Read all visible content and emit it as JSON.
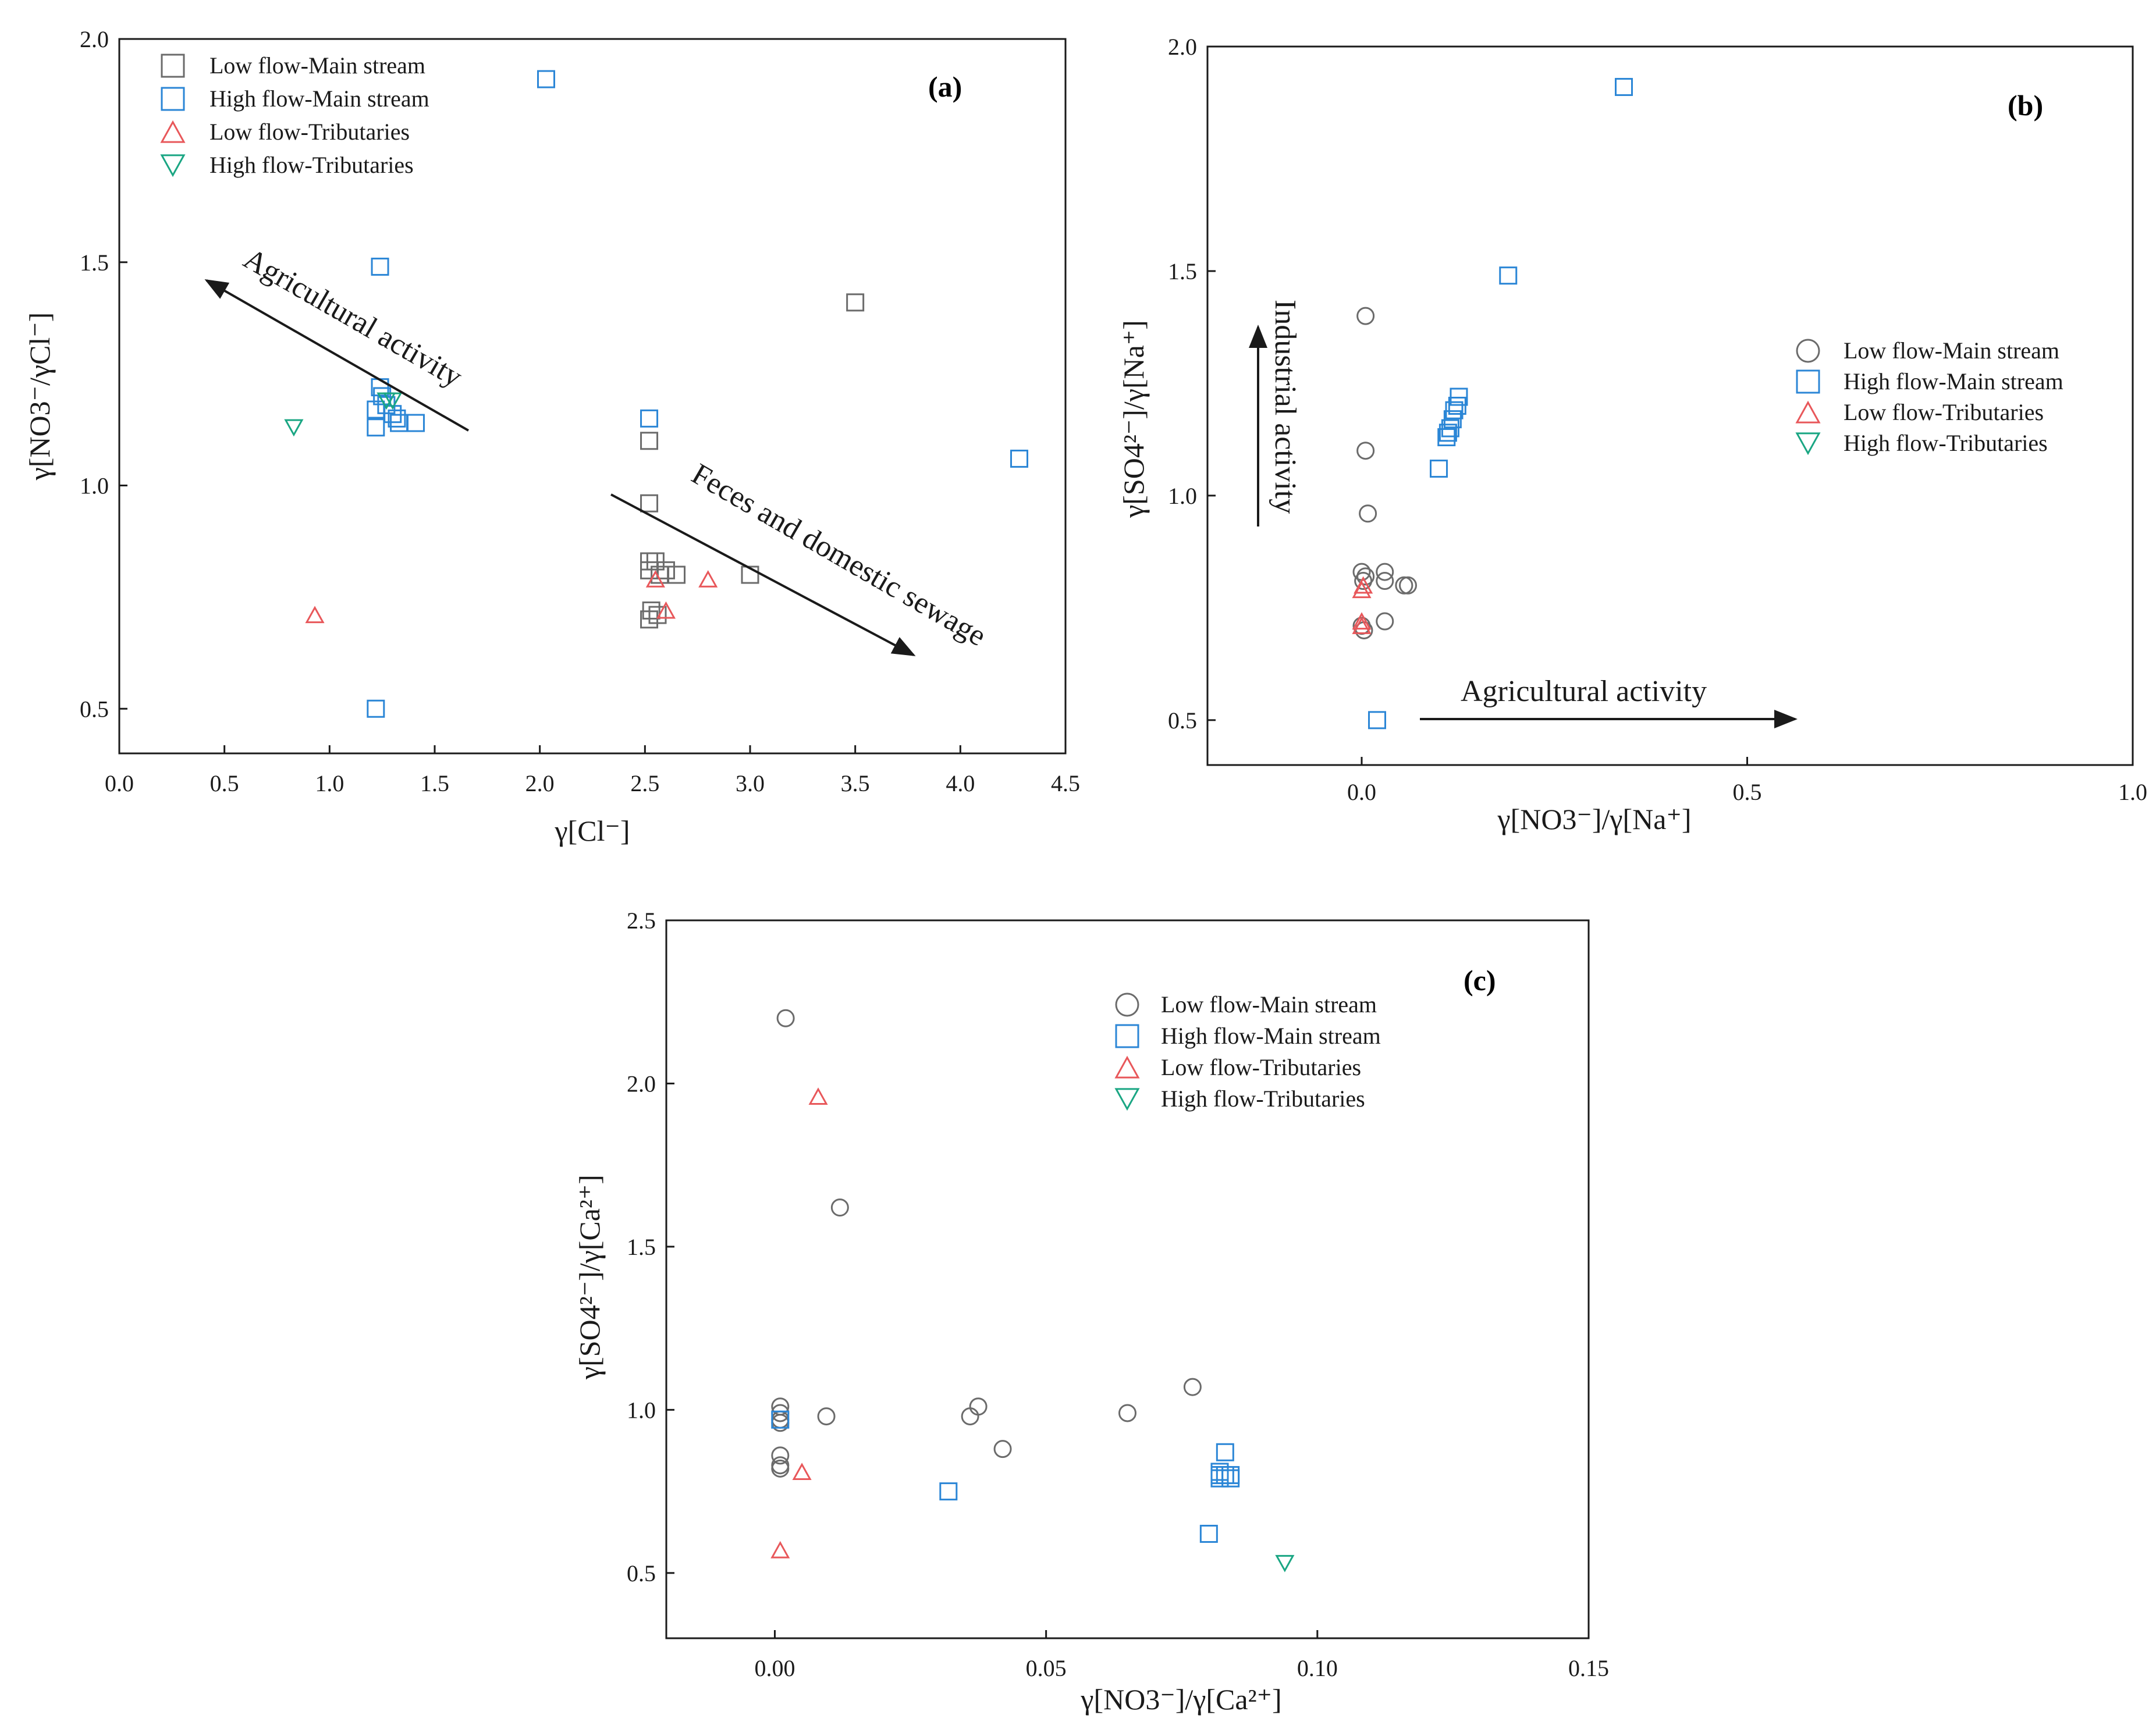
{
  "legend": [
    "Low flow-Main stream",
    "High flow-Main stream",
    "Low flow-Tributaries",
    "High flow-Tributaries"
  ],
  "colors": {
    "low_main": "#6b6b6b",
    "high_main": "#2b86d6",
    "low_trib": "#e8575a",
    "high_trib": "#1aa683",
    "axis": "#1a1a1a"
  },
  "chart_data": [
    {
      "type": "scatter",
      "panel": "(a)",
      "xlabel": "γ[Cl⁻]",
      "ylabel": "γ[NO3⁻/γCl⁻]",
      "xlim": [
        0,
        4.5
      ],
      "ylim": [
        0.4,
        2.0
      ],
      "xticks": [
        "0.0",
        "0.5",
        "1.0",
        "1.5",
        "2.0",
        "2.5",
        "3.0",
        "3.5",
        "4.0",
        "4.5"
      ],
      "yticks": [
        "0.5",
        "1.0",
        "1.5",
        "2.0"
      ],
      "annotations": [
        {
          "text": "Agricultural activity"
        },
        {
          "text": "Feces and domestic sewage"
        }
      ],
      "series": [
        {
          "name": "Low flow-Main stream",
          "marker": "square",
          "points": [
            [
              2.52,
              1.1
            ],
            [
              2.52,
              0.96
            ],
            [
              2.52,
              0.83
            ],
            [
              2.52,
              0.81
            ],
            [
              2.55,
              0.83
            ],
            [
              2.57,
              0.8
            ],
            [
              2.6,
              0.81
            ],
            [
              2.65,
              0.8
            ],
            [
              2.53,
              0.72
            ],
            [
              2.52,
              0.7
            ],
            [
              2.56,
              0.71
            ],
            [
              3.0,
              0.8
            ],
            [
              3.5,
              1.41
            ]
          ]
        },
        {
          "name": "High flow-Main stream",
          "marker": "square",
          "points": [
            [
              1.24,
              1.49
            ],
            [
              1.24,
              1.22
            ],
            [
              1.22,
              1.17
            ],
            [
              1.25,
              1.2
            ],
            [
              1.27,
              1.18
            ],
            [
              1.3,
              1.16
            ],
            [
              1.32,
              1.15
            ],
            [
              1.33,
              1.14
            ],
            [
              1.41,
              1.14
            ],
            [
              1.22,
              1.13
            ],
            [
              2.03,
              1.91
            ],
            [
              2.52,
              1.15
            ],
            [
              4.28,
              1.06
            ],
            [
              1.22,
              0.5
            ]
          ]
        },
        {
          "name": "Low flow-Tributaries",
          "marker": "triangle-up",
          "points": [
            [
              0.93,
              0.71
            ],
            [
              2.55,
              0.79
            ],
            [
              2.6,
              0.72
            ],
            [
              2.8,
              0.79
            ]
          ]
        },
        {
          "name": "High flow-Tributaries",
          "marker": "triangle-down",
          "points": [
            [
              0.83,
              1.13
            ],
            [
              1.27,
              1.19
            ],
            [
              1.3,
              1.19
            ]
          ]
        }
      ]
    },
    {
      "type": "scatter",
      "panel": "(b)",
      "xlabel": "γ[NO3⁻]/γ[Na⁺]",
      "ylabel": "γ[SO4²⁻]/γ[Na⁺]",
      "xlim": [
        -0.2,
        1.0
      ],
      "ylim": [
        0.4,
        2.0
      ],
      "xticks": [
        "0.0",
        "0.5",
        "1.0"
      ],
      "yticks": [
        "0.5",
        "1.0",
        "1.5",
        "2.0"
      ],
      "annotations": [
        {
          "text": "Industrial activity"
        },
        {
          "text": "Agricultural activity"
        }
      ],
      "series": [
        {
          "name": "Low flow-Main stream",
          "marker": "circle",
          "points": [
            [
              0.005,
              1.4
            ],
            [
              0.005,
              1.1
            ],
            [
              0.008,
              0.96
            ],
            [
              0.0,
              0.83
            ],
            [
              0.005,
              0.82
            ],
            [
              0.03,
              0.83
            ],
            [
              0.03,
              0.81
            ],
            [
              0.055,
              0.8
            ],
            [
              0.06,
              0.8
            ],
            [
              0.002,
              0.81
            ],
            [
              0.03,
              0.72
            ],
            [
              0.0,
              0.71
            ],
            [
              0.003,
              0.7
            ]
          ]
        },
        {
          "name": "High flow-Main stream",
          "marker": "square",
          "points": [
            [
              0.34,
              1.91
            ],
            [
              0.19,
              1.49
            ],
            [
              0.126,
              1.22
            ],
            [
              0.124,
              1.2
            ],
            [
              0.12,
              1.19
            ],
            [
              0.118,
              1.17
            ],
            [
              0.115,
              1.15
            ],
            [
              0.112,
              1.14
            ],
            [
              0.11,
              1.13
            ],
            [
              0.1,
              1.06
            ],
            [
              0.02,
              0.5
            ]
          ]
        },
        {
          "name": "Low flow-Tributaries",
          "marker": "triangle-up",
          "points": [
            [
              0.0,
              0.79
            ],
            [
              0.0,
              0.72
            ],
            [
              0.0,
              0.71
            ],
            [
              0.002,
              0.8
            ]
          ]
        },
        {
          "name": "High flow-Tributaries",
          "marker": "triangle-down",
          "points": []
        }
      ]
    },
    {
      "type": "scatter",
      "panel": "(c)",
      "xlabel": "γ[NO3⁻]/γ[Ca²⁺]",
      "ylabel": "γ[SO4²⁻]/γ[Ca²⁺]",
      "xlim": [
        -0.02,
        0.15
      ],
      "ylim": [
        0.3,
        2.5
      ],
      "xticks": [
        "0.00",
        "0.05",
        "0.10",
        "0.15"
      ],
      "yticks": [
        "0.5",
        "1.0",
        "1.5",
        "2.0",
        "2.5"
      ],
      "annotations": [],
      "series": [
        {
          "name": "Low flow-Main stream",
          "marker": "circle",
          "points": [
            [
              0.002,
              2.2
            ],
            [
              0.012,
              1.62
            ],
            [
              0.001,
              1.01
            ],
            [
              0.001,
              0.99
            ],
            [
              0.001,
              0.97
            ],
            [
              0.001,
              0.96
            ],
            [
              0.001,
              0.86
            ],
            [
              0.001,
              0.83
            ],
            [
              0.001,
              0.82
            ],
            [
              0.0095,
              0.98
            ],
            [
              0.036,
              0.98
            ],
            [
              0.0375,
              1.01
            ],
            [
              0.042,
              0.88
            ],
            [
              0.065,
              0.99
            ],
            [
              0.077,
              1.07
            ]
          ]
        },
        {
          "name": "High flow-Main stream",
          "marker": "square",
          "points": [
            [
              0.001,
              0.97
            ],
            [
              0.032,
              0.75
            ],
            [
              0.08,
              0.62
            ],
            [
              0.082,
              0.81
            ],
            [
              0.083,
              0.87
            ],
            [
              0.082,
              0.8
            ],
            [
              0.083,
              0.8
            ],
            [
              0.084,
              0.8
            ],
            [
              0.084,
              0.79
            ],
            [
              0.082,
              0.79
            ]
          ]
        },
        {
          "name": "Low flow-Tributaries",
          "marker": "triangle-up",
          "points": [
            [
              0.008,
              1.96
            ],
            [
              0.005,
              0.81
            ],
            [
              0.001,
              0.57
            ]
          ]
        },
        {
          "name": "High flow-Tributaries",
          "marker": "triangle-down",
          "points": [
            [
              0.094,
              0.53
            ]
          ]
        }
      ]
    }
  ]
}
